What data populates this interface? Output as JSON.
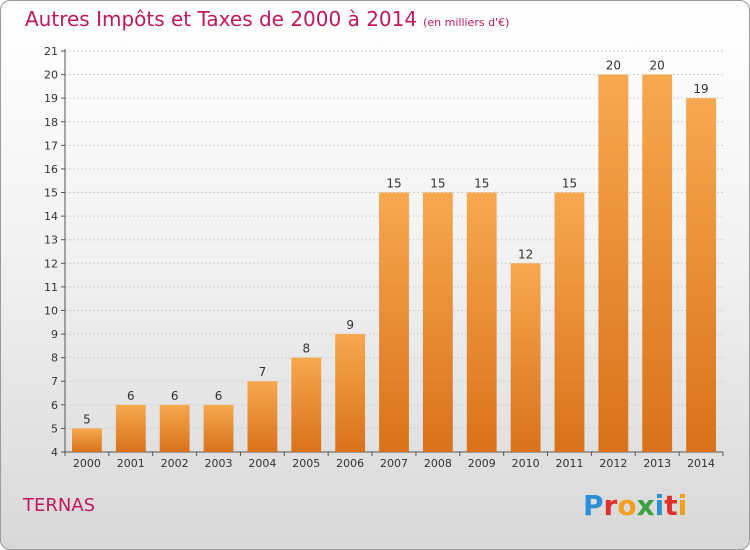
{
  "header": {
    "title": "Autres Impôts et Taxes de 2000 à 2014",
    "subtitle": "(en milliers d'€)"
  },
  "footer": {
    "place": "TERNAS",
    "logo": "Proxiti"
  },
  "colors": {
    "title": "#c0175d",
    "bar_light": "#f7a84f",
    "bar_dark": "#d9721a"
  },
  "chart_data": {
    "type": "bar",
    "categories": [
      "2000",
      "2001",
      "2002",
      "2003",
      "2004",
      "2005",
      "2006",
      "2007",
      "2008",
      "2009",
      "2010",
      "2011",
      "2012",
      "2013",
      "2014"
    ],
    "values": [
      5,
      6,
      6,
      6,
      7,
      8,
      9,
      15,
      15,
      15,
      12,
      15,
      20,
      20,
      19
    ],
    "ylim": [
      4,
      21
    ],
    "yticks": [
      4,
      5,
      6,
      7,
      8,
      9,
      10,
      11,
      12,
      13,
      14,
      15,
      16,
      17,
      18,
      19,
      20,
      21
    ],
    "grid": true
  }
}
